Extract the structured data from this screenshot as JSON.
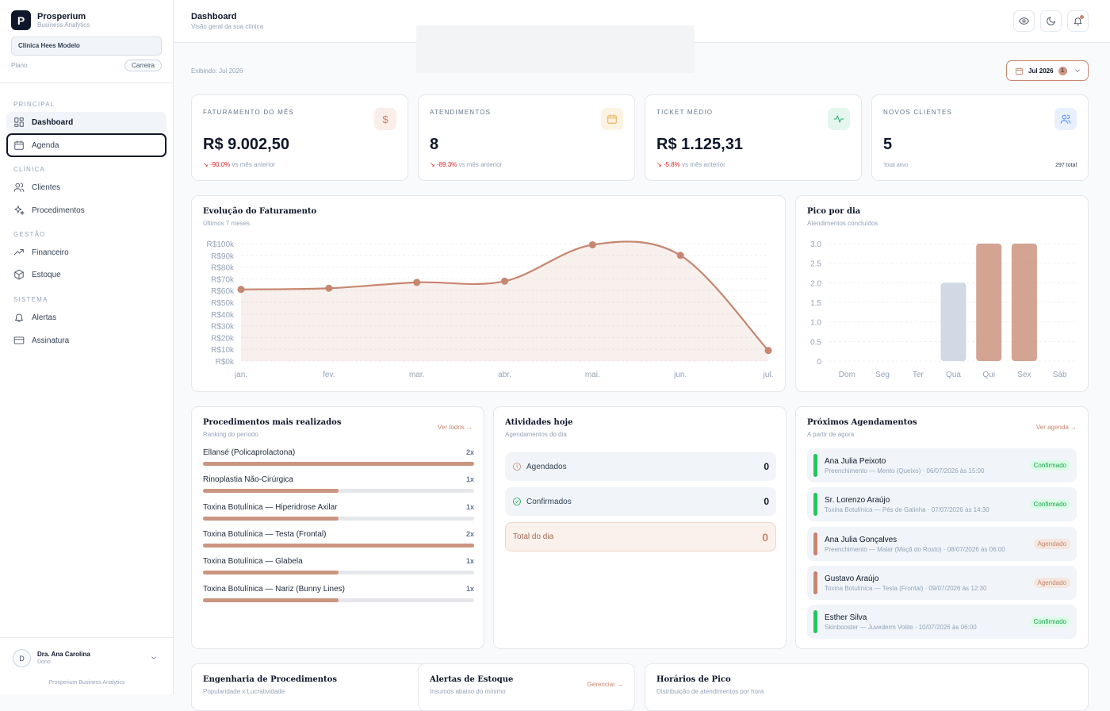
{
  "brand": {
    "logo_letter": "P",
    "title": "Prosperium",
    "subtitle": "Business Analytics"
  },
  "clinic": {
    "name": "Clínica Hees Modelo",
    "plan_label": "Plano",
    "plan_value": "Carreira"
  },
  "nav": {
    "sections": [
      {
        "label": "PRINCIPAL",
        "items": [
          {
            "label": "Dashboard",
            "icon": "dashboard-icon"
          },
          {
            "label": "Agenda",
            "icon": "calendar-icon"
          }
        ]
      },
      {
        "label": "CLÍNICA",
        "items": [
          {
            "label": "Clientes",
            "icon": "users-icon"
          },
          {
            "label": "Procedimentos",
            "icon": "sparkles-icon"
          }
        ]
      },
      {
        "label": "GESTÃO",
        "items": [
          {
            "label": "Financeiro",
            "icon": "trending-up-icon"
          },
          {
            "label": "Estoque",
            "icon": "package-icon"
          }
        ]
      },
      {
        "label": "SISTEMA",
        "items": [
          {
            "label": "Alertas",
            "icon": "bell-icon"
          },
          {
            "label": "Assinatura",
            "icon": "credit-card-icon"
          }
        ]
      }
    ]
  },
  "user": {
    "initial": "D",
    "name": "Dra. Ana Carolina",
    "role": "Dono",
    "footer": "Prosperium Business Analytics"
  },
  "header": {
    "title": "Dashboard",
    "subtitle": "Visão geral da sua clínica"
  },
  "period": {
    "showing": "Exibindo: Jul 2026",
    "selected": "Jul 2026",
    "badge": "1"
  },
  "colors": {
    "accent": "#c6866f",
    "negative": "#dc2626",
    "positive": "#16a34a",
    "muted_bar": "#cbd5e1"
  },
  "kpis": [
    {
      "label": "FATURAMENTO DO MÊS",
      "value": "R$ 9.002,50",
      "delta": "-90.0%",
      "delta_text": "vs mês anterior",
      "icon": "dollar-icon"
    },
    {
      "label": "ATENDIMENTOS",
      "value": "8",
      "delta": "-89.3%",
      "delta_text": "vs mês anterior",
      "icon": "calendar-icon"
    },
    {
      "label": "TICKET MÉDIO",
      "value": "R$ 1.125,31",
      "delta": "-5.8%",
      "delta_text": "vs mês anterior",
      "icon": "activity-icon"
    },
    {
      "label": "NOVOS CLIENTES",
      "value": "5",
      "foot_left": "Total ativo",
      "foot_right": "297 total",
      "icon": "users-icon"
    }
  ],
  "revenue_chart": {
    "title": "Evolução do Faturamento",
    "subtitle": "Últimos 7 meses"
  },
  "peak_chart": {
    "title": "Pico por dia",
    "subtitle": "Atendimentos concluídos"
  },
  "chart_data": [
    {
      "type": "area",
      "x": [
        "jan.",
        "fev.",
        "mar.",
        "abr.",
        "mai.",
        "jun.",
        "jul."
      ],
      "values": [
        61000,
        62000,
        67000,
        68000,
        99000,
        90000,
        9000
      ],
      "ylim": [
        0,
        100000
      ],
      "yticks": [
        "R$0k",
        "R$10k",
        "R$20k",
        "R$30k",
        "R$40k",
        "R$50k",
        "R$60k",
        "R$70k",
        "R$80k",
        "R$90k",
        "R$100k"
      ],
      "grid": true
    },
    {
      "type": "bar",
      "categories": [
        "Dom",
        "Seg",
        "Ter",
        "Qua",
        "Qui",
        "Sex",
        "Sáb"
      ],
      "values": [
        0,
        0,
        0,
        2,
        3,
        3,
        0
      ],
      "ylim": [
        0,
        3
      ],
      "yticks": [
        "0",
        "0.5",
        "1.0",
        "1.5",
        "2.0",
        "2.5",
        "3.0"
      ],
      "highlight": [
        false,
        false,
        false,
        false,
        true,
        true,
        false
      ],
      "grid": true
    }
  ],
  "procedures": {
    "title": "Procedimentos mais realizados",
    "subtitle": "Ranking do período",
    "link": "Ver todos →",
    "items": [
      {
        "name": "Ellansé (Policaprolactona)",
        "count": "2x",
        "ratio": 1.0
      },
      {
        "name": "Rinoplastia Não-Cirúrgica",
        "count": "1x",
        "ratio": 0.5
      },
      {
        "name": "Toxina Botulínica — Hiperidrose Axilar",
        "count": "1x",
        "ratio": 0.5
      },
      {
        "name": "Toxina Botulínica — Testa (Frontal)",
        "count": "2x",
        "ratio": 1.0
      },
      {
        "name": "Toxina Botulínica — Glabela",
        "count": "1x",
        "ratio": 0.5
      },
      {
        "name": "Toxina Botulínica — Nariz (Bunny Lines)",
        "count": "1x",
        "ratio": 0.5
      }
    ]
  },
  "activities": {
    "title": "Atividades hoje",
    "subtitle": "Agendamentos do dia",
    "scheduled_label": "Agendados",
    "scheduled_value": "0",
    "confirmed_label": "Confirmados",
    "confirmed_value": "0",
    "total_label": "Total do dia",
    "total_value": "0"
  },
  "appointments": {
    "title": "Próximos Agendamentos",
    "subtitle": "A partir de agora",
    "link": "Ver agenda →",
    "items": [
      {
        "name": "Ana Julia Peixoto",
        "detail": "Preenchimento — Mento (Queixo) · 06/07/2026 às 15:00",
        "status": "Confirmado"
      },
      {
        "name": "Sr. Lorenzo Araújo",
        "detail": "Toxina Botulínica — Pés de Galinha · 07/07/2026 às 14:30",
        "status": "Confirmado"
      },
      {
        "name": "Ana Julia Gonçalves",
        "detail": "Preenchimento — Malar (Maçã do Rosto) · 08/07/2026 às 06:00",
        "status": "Agendado"
      },
      {
        "name": "Gustavo Araújo",
        "detail": "Toxina Botulínica — Testa (Frontal) · 09/07/2026 às 12:30",
        "status": "Agendado"
      },
      {
        "name": "Esther Silva",
        "detail": "Skinbooster — Juvederm Volite · 10/07/2026 às 06:00",
        "status": "Confirmado"
      }
    ]
  },
  "bottom": {
    "engineering": {
      "title": "Engenharia de Procedimentos",
      "subtitle": "Popularidade x Lucratividade"
    },
    "stock": {
      "title": "Alertas de Estoque",
      "subtitle": "Insumos abaixo do mínimo",
      "link": "Gerenciar →"
    },
    "peak_hours": {
      "title": "Horários de Pico",
      "subtitle": "Distribuição de atendimentos por hora"
    }
  }
}
